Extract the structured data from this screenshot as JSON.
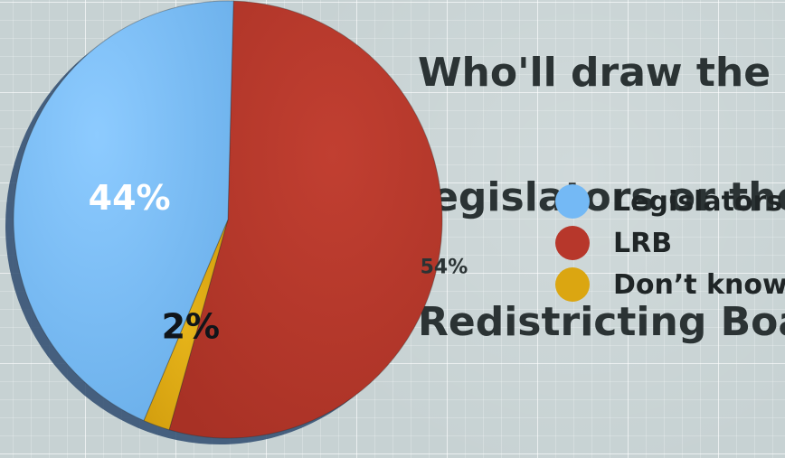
{
  "chart_data": {
    "type": "pie",
    "title": "Who'll draw the lines: legislators or the Legislative Redistricting Board?",
    "title_visible_lines": [
      "Who'll draw the li",
      "legislators or the L",
      "Redistricting Board"
    ],
    "slices": [
      {
        "name": "Legislators",
        "value": 44,
        "label": "44%",
        "color": "#74b9f5"
      },
      {
        "name": "LRB",
        "value": 54,
        "label": "54%",
        "color": "#b7372b"
      },
      {
        "name": "Don’t know",
        "value": 2,
        "label": "2%",
        "color": "#dba611"
      }
    ],
    "legend": {
      "placement": "right",
      "items": [
        "Legislators",
        "LRB",
        "Don’t know"
      ]
    },
    "grid": false
  }
}
